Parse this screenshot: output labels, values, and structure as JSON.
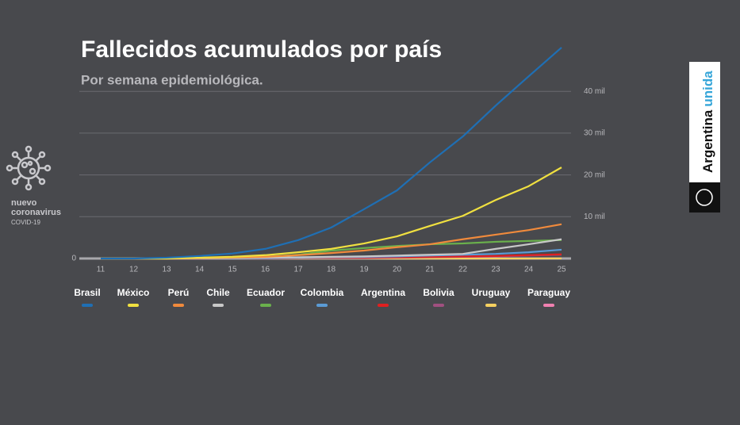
{
  "chart_data": {
    "type": "line",
    "title": "Fallecidos acumulados por país",
    "subtitle": "Por semana epidemiológica.",
    "categories": [
      "11",
      "12",
      "13",
      "14",
      "15",
      "16",
      "17",
      "18",
      "19",
      "20",
      "21",
      "22",
      "23",
      "24",
      "25"
    ],
    "ylim": [
      0,
      52000
    ],
    "yticks": [
      0,
      {
        "value": 10000,
        "label": "10 mil"
      },
      {
        "value": 20000,
        "label": "20 mil"
      },
      {
        "value": 30000,
        "label": "30 mil"
      },
      {
        "value": 40000,
        "label": "40 mil"
      }
    ],
    "grid": true,
    "series": [
      {
        "name": "Brasil",
        "color": "#1f6fb4",
        "values": [
          0,
          0,
          200,
          600,
          1200,
          2300,
          4400,
          7400,
          11800,
          16300,
          23000,
          29200,
          36600,
          43600,
          50500
        ]
      },
      {
        "name": "México",
        "color": "#f0e040",
        "values": [
          0,
          0,
          0,
          200,
          400,
          800,
          1500,
          2300,
          3600,
          5300,
          7800,
          10200,
          14000,
          17300,
          21800
        ]
      },
      {
        "name": "Perú",
        "color": "#f08a3c",
        "values": [
          0,
          0,
          0,
          100,
          200,
          400,
          800,
          1300,
          1900,
          2700,
          3400,
          4600,
          5700,
          6800,
          8200
        ]
      },
      {
        "name": "Chile",
        "color": "#c8c8c8",
        "values": [
          0,
          0,
          0,
          0,
          100,
          200,
          300,
          400,
          500,
          700,
          900,
          1100,
          2300,
          3400,
          4600
        ]
      },
      {
        "name": "Ecuador",
        "color": "#6ab04c",
        "values": [
          0,
          0,
          0,
          100,
          200,
          400,
          900,
          1900,
          2500,
          3000,
          3400,
          3600,
          4000,
          4200,
          4400
        ]
      },
      {
        "name": "Colombia",
        "color": "#5b9bd5",
        "values": [
          0,
          0,
          0,
          0,
          0,
          100,
          200,
          300,
          400,
          500,
          700,
          900,
          1100,
          1500,
          2100
        ]
      },
      {
        "name": "Argentina",
        "color": "#e02020",
        "values": [
          0,
          0,
          0,
          0,
          100,
          100,
          200,
          200,
          300,
          300,
          400,
          500,
          600,
          800,
          1000
        ]
      },
      {
        "name": "Bolivia",
        "color": "#a05080",
        "values": [
          0,
          0,
          0,
          0,
          0,
          0,
          100,
          100,
          100,
          200,
          300,
          400,
          500,
          700,
          900
        ]
      },
      {
        "name": "Uruguay",
        "color": "#f5d060",
        "values": [
          0,
          0,
          0,
          0,
          0,
          0,
          0,
          0,
          0,
          0,
          0,
          0,
          0,
          0,
          30
        ]
      },
      {
        "name": "Paraguay",
        "color": "#f080b0",
        "values": [
          0,
          0,
          0,
          0,
          0,
          0,
          0,
          0,
          0,
          0,
          0,
          0,
          0,
          0,
          20
        ]
      }
    ]
  },
  "brand": {
    "line1": "nuevo",
    "line2": "coronavirus",
    "line3": "COVID-19"
  },
  "logo": {
    "word1": "Argentina",
    "word2": "unida"
  }
}
